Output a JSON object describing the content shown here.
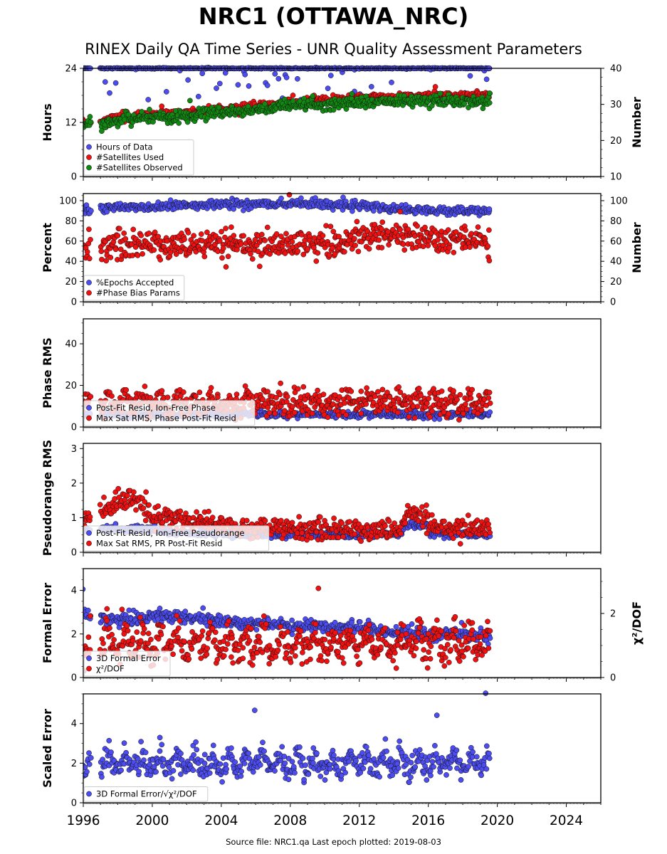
{
  "title": "NRC1 (OTTAWA_NRC)",
  "subtitle": "RINEX Daily QA Time Series - UNR Quality Assessment Parameters",
  "footer": "Source file: NRC1.qa Last epoch plotted: 2019-08-03",
  "colors": {
    "blue": "#4c4cf0",
    "red": "#ee1111",
    "green": "#118811",
    "edge": "#111111"
  },
  "chart_data": {
    "type": "scatter",
    "x_axis": {
      "xlim": [
        1996.0,
        2026.0
      ],
      "ticks": [
        1996,
        2000,
        2004,
        2008,
        2012,
        2016,
        2020,
        2024
      ],
      "tick_labels": [
        "1996",
        "2000",
        "2004",
        "2008",
        "2012",
        "2016",
        "2020",
        "2024"
      ],
      "data_start": 1996.0,
      "data_gap": [
        1996.45,
        1997.0
      ],
      "data_end": 2019.59
    },
    "panels": [
      {
        "ylabel": "Hours",
        "ylim": [
          0,
          24
        ],
        "yticks": [
          0,
          12,
          24
        ],
        "right_ylabel": "Number",
        "right_ylim": [
          10,
          40
        ],
        "right_yticks": [
          10,
          20,
          30,
          40
        ],
        "legend": [
          "Hours of Data",
          "#Satellites Used",
          "#Satellites Observed"
        ],
        "series": [
          {
            "name": "Hours of Data",
            "color": "blue",
            "axis": "left",
            "trend": [
              [
                1996,
                24
              ],
              [
                2019.6,
                24
              ]
            ],
            "spread": 0.05,
            "outlier_rate": 0.06,
            "outlier_range": [
              16,
              23.8
            ]
          },
          {
            "name": "#Satellites Used",
            "color": "red",
            "axis": "right",
            "trend": [
              [
                1996,
                25
              ],
              [
                1997.1,
                25
              ],
              [
                1998,
                26.5
              ],
              [
                2001,
                27.3
              ],
              [
                2004,
                28.5
              ],
              [
                2007,
                30
              ],
              [
                2010,
                31
              ],
              [
                2013,
                32
              ],
              [
                2016,
                32.3
              ],
              [
                2019.6,
                32.4
              ]
            ],
            "spread": 0.6
          },
          {
            "name": "#Satellites Observed",
            "color": "green",
            "axis": "right",
            "trend": [
              [
                1996,
                24.5
              ],
              [
                1997.1,
                24.5
              ],
              [
                1998,
                25.8
              ],
              [
                2001,
                26.5
              ],
              [
                2004,
                27.8
              ],
              [
                2007,
                29
              ],
              [
                2010,
                30
              ],
              [
                2013,
                30.8
              ],
              [
                2016,
                31
              ],
              [
                2019.6,
                31
              ]
            ],
            "spread": 0.8
          }
        ]
      },
      {
        "ylabel": "Percent",
        "ylim": [
          0,
          107
        ],
        "yticks": [
          0,
          20,
          40,
          60,
          80,
          100
        ],
        "right_ylabel": "Number",
        "right_ylim": [
          0,
          107
        ],
        "right_yticks": [
          0,
          20,
          40,
          60,
          80,
          100
        ],
        "legend": [
          "%Epochs Accepted",
          "#Phase Bias Params"
        ],
        "series": [
          {
            "name": "%Epochs Accepted",
            "color": "blue",
            "axis": "left",
            "trend": [
              [
                1996,
                90
              ],
              [
                1997.5,
                93
              ],
              [
                2003,
                96
              ],
              [
                2008,
                97
              ],
              [
                2012,
                95
              ],
              [
                2015,
                91
              ],
              [
                2019.6,
                89
              ]
            ],
            "spread": 2.2
          },
          {
            "name": "#Phase Bias Params",
            "color": "red",
            "axis": "right",
            "trend": [
              [
                1996,
                55
              ],
              [
                1997.2,
                55
              ],
              [
                2000,
                57
              ],
              [
                2005,
                56
              ],
              [
                2010,
                57
              ],
              [
                2013,
                63
              ],
              [
                2016,
                65
              ],
              [
                2019.6,
                60
              ]
            ],
            "spread": 7
          }
        ]
      },
      {
        "ylabel": "Phase RMS",
        "ylim": [
          0,
          52
        ],
        "yticks": [
          0,
          20,
          40
        ],
        "legend": [
          "Post-Fit Resid, Ion-Free Phase",
          "Max Sat RMS, Phase Post-Fit Resid"
        ],
        "series": [
          {
            "name": "Post-Fit Resid, Ion-Free Phase",
            "color": "blue",
            "axis": "left",
            "trend": [
              [
                1996,
                6
              ],
              [
                2019.6,
                6
              ]
            ],
            "spread": 0.8
          },
          {
            "name": "Max Sat RMS, Phase Post-Fit Resid",
            "color": "red",
            "axis": "left",
            "trend": [
              [
                1996,
                10
              ],
              [
                2019.6,
                11
              ]
            ],
            "spread": 3,
            "seasonal": 5
          }
        ]
      },
      {
        "ylabel": "Pseudorange RMS",
        "ylim": [
          0,
          3.15
        ],
        "yticks": [
          0,
          1,
          2,
          3
        ],
        "legend": [
          "Post-Fit Resid, Ion-Free Pseudorange",
          "Max Sat RMS, PR Post-Fit Resid"
        ],
        "series": [
          {
            "name": "Post-Fit Resid, Ion-Free Pseudorange",
            "color": "blue",
            "axis": "left",
            "trend": [
              [
                1996,
                0.6
              ],
              [
                1999,
                0.7
              ],
              [
                2002,
                0.55
              ],
              [
                2012,
                0.5
              ],
              [
                2014.5,
                0.55
              ],
              [
                2014.6,
                0.8
              ],
              [
                2016,
                0.75
              ],
              [
                2016.1,
                0.55
              ],
              [
                2019.6,
                0.5
              ]
            ],
            "spread": 0.05
          },
          {
            "name": "Max Sat RMS, PR Post-Fit Resid",
            "color": "red",
            "axis": "left",
            "trend": [
              [
                1996,
                0.9
              ],
              [
                1998,
                1.4
              ],
              [
                1999,
                1.6
              ],
              [
                2000,
                1.0
              ],
              [
                2003,
                0.9
              ],
              [
                2005,
                0.7
              ],
              [
                2011,
                0.65
              ],
              [
                2014.5,
                0.65
              ],
              [
                2014.6,
                1.1
              ],
              [
                2016,
                1.0
              ],
              [
                2016.1,
                0.7
              ],
              [
                2019.6,
                0.7
              ]
            ],
            "spread": 0.15
          }
        ]
      },
      {
        "ylabel": "Formal Error",
        "ylim": [
          0,
          5.0
        ],
        "yticks": [
          0,
          2,
          4
        ],
        "right_ylabel": "χ²/DOF",
        "right_ylim": [
          0,
          3.4
        ],
        "right_yticks": [
          0,
          2
        ],
        "legend": [
          "3D Formal Error",
          "χ²/DOF"
        ],
        "series": [
          {
            "name": "3D Formal Error",
            "color": "blue",
            "axis": "left",
            "trend": [
              [
                1996,
                3.0
              ],
              [
                1997.2,
                2.6
              ],
              [
                2000,
                2.8
              ],
              [
                2004,
                2.6
              ],
              [
                2008,
                2.4
              ],
              [
                2012,
                2.3
              ],
              [
                2016,
                2.0
              ],
              [
                2019.6,
                1.9
              ]
            ],
            "spread": 0.15
          },
          {
            "name": "χ²/DOF",
            "color": "red",
            "axis": "right",
            "trend": [
              [
                1996,
                0.8
              ],
              [
                2019.6,
                0.9
              ]
            ],
            "spread": 0.25,
            "seasonal": 0.8
          }
        ]
      },
      {
        "ylabel": "Scaled Error",
        "ylim": [
          0,
          5.5
        ],
        "yticks": [
          0,
          2,
          4
        ],
        "legend": [
          "3D Formal Error/√χ²/DOF"
        ],
        "series": [
          {
            "name": "3D Formal Error/√χ²/DOF",
            "color": "blue",
            "axis": "left",
            "trend": [
              [
                1996,
                1.8
              ],
              [
                2019.6,
                1.8
              ]
            ],
            "spread": 0.3,
            "seasonal": 0.8
          }
        ]
      }
    ]
  }
}
